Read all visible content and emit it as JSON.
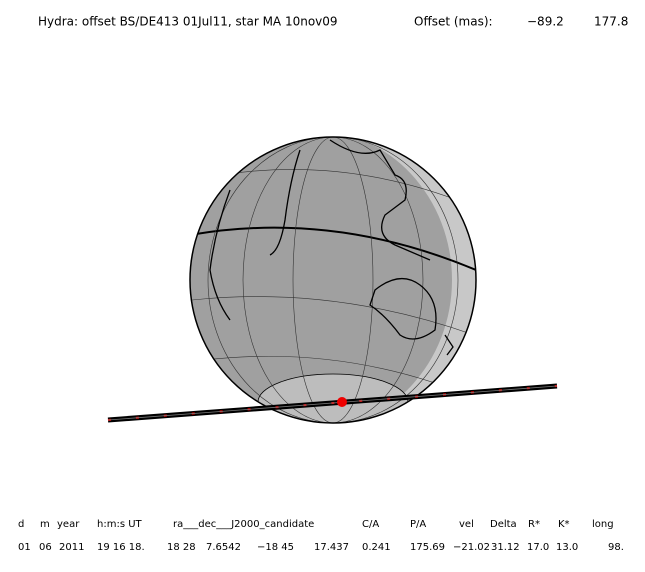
{
  "header": {
    "title": "Hydra: offset BS/DE413 01Jul11, star MA 10nov09",
    "offset_label": "Offset (mas):",
    "offset_x": "−89.2",
    "offset_y": "177.8"
  },
  "table": {
    "headers": [
      "d",
      "m",
      "year",
      "h:m:s UT",
      "ra___dec___J2000_candidate",
      "C/A",
      "P/A",
      "vel",
      "Delta",
      "R*",
      "K*",
      "long"
    ],
    "rows": [
      [
        "01",
        "06",
        "2011",
        "19 16 18.",
        "18 28",
        "7.6542",
        "−18 45",
        "17.437",
        "0.241",
        "175.69",
        "−21.02",
        "31.12",
        "17.0",
        "13.0",
        "98."
      ]
    ]
  }
}
